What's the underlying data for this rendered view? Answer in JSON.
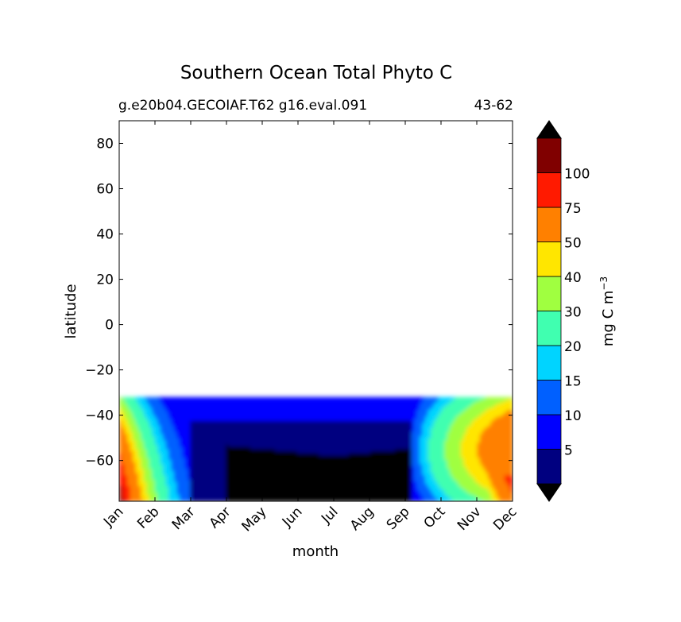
{
  "chart_data": {
    "type": "heatmap",
    "title": "Southern Ocean Total Phyto C",
    "subtitle_left": "g.e20b04.GECOIAF.T62 g16.eval.091",
    "subtitle_right": "43-62",
    "xlabel": "month",
    "ylabel": "latitude",
    "x_categories": [
      "Jan",
      "Feb",
      "Mar",
      "Apr",
      "May",
      "Jun",
      "Jul",
      "Aug",
      "Sep",
      "Oct",
      "Nov",
      "Dec"
    ],
    "ylim": [
      -78,
      90
    ],
    "y_ticks": [
      80,
      60,
      40,
      20,
      0,
      -20,
      -40,
      -60
    ],
    "y_tick_labels": [
      "80",
      "60",
      "40",
      "20",
      "0",
      "−20",
      "−40",
      "−60"
    ],
    "data_lat_max": -32,
    "colorbar": {
      "label": "mg C m",
      "label_exponent": "−3",
      "levels": [
        0,
        5,
        10,
        15,
        20,
        30,
        40,
        50,
        75,
        100,
        125
      ],
      "tick_values": [
        5,
        10,
        15,
        20,
        30,
        40,
        50,
        75,
        100
      ],
      "tick_labels": [
        "5",
        "10",
        "15",
        "20",
        "30",
        "40",
        "50",
        "75",
        "100"
      ],
      "colors": [
        "#000080",
        "#0000ff",
        "#0060ff",
        "#00d4ff",
        "#40ffb0",
        "#a0ff40",
        "#ffe600",
        "#ff8000",
        "#ff1a00",
        "#800000"
      ],
      "under_color": "#000000",
      "over_color": "#000000",
      "extend": "both"
    }
  }
}
